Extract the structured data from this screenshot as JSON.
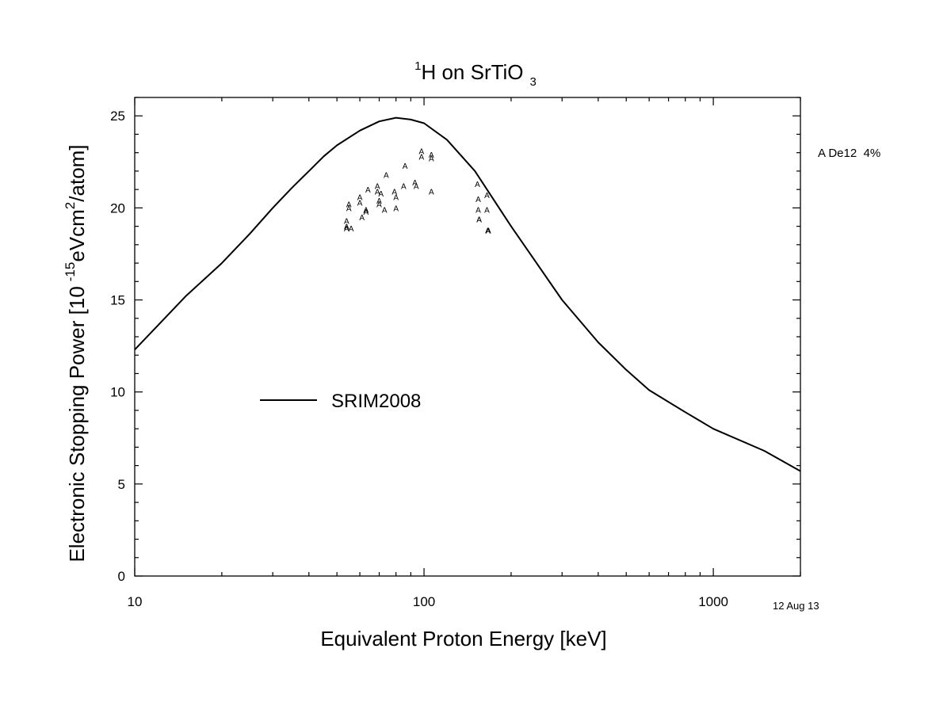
{
  "chart_data": {
    "type": "line",
    "title": {
      "sup": "1",
      "main": "H on SrTiO",
      "sub": "3"
    },
    "xlabel": "Equivalent Proton Energy [keV]",
    "ylabel": {
      "pre": "Electronic Stopping Power [10",
      "sup1": "-15",
      "mid": "eVcm",
      "sup2": "2",
      "post": "/atom]"
    },
    "x_scale": "log",
    "xlim": [
      10,
      2000
    ],
    "ylim": [
      0,
      26
    ],
    "x_tick_labels": [
      "10",
      "100",
      "1000"
    ],
    "x_major_ticks": [
      10,
      100,
      1000
    ],
    "y_ticks": [
      0,
      5,
      10,
      15,
      20,
      25
    ],
    "y_tick_labels": [
      "0",
      "5",
      "10",
      "15",
      "20",
      "25"
    ],
    "grid": false,
    "series": [
      {
        "name": "SRIM2008",
        "style": "line",
        "color": "#000000",
        "x": [
          10,
          12,
          15,
          20,
          25,
          30,
          35,
          40,
          45,
          50,
          60,
          70,
          80,
          90,
          100,
          120,
          150,
          200,
          250,
          300,
          400,
          500,
          600,
          800,
          1000,
          1500,
          2000
        ],
        "y": [
          12.3,
          13.6,
          15.2,
          17.0,
          18.6,
          20.0,
          21.1,
          22.0,
          22.8,
          23.4,
          24.2,
          24.7,
          24.9,
          24.8,
          24.6,
          23.7,
          22.0,
          19.0,
          16.8,
          15.0,
          12.7,
          11.2,
          10.1,
          8.9,
          8.0,
          6.8,
          5.7
        ]
      },
      {
        "name": "A De12  4%",
        "style": "marker",
        "marker": "A",
        "color": "#000000",
        "x": [
          54,
          54,
          54,
          55,
          55,
          56,
          60,
          60,
          61,
          63,
          63,
          64,
          69,
          69,
          70,
          70,
          71,
          73,
          74,
          79,
          80,
          80,
          85,
          86,
          93,
          94,
          98,
          98,
          106,
          106,
          106,
          153,
          154,
          154,
          155,
          155,
          165,
          165,
          166,
          167
        ],
        "y": [
          19.3,
          19.0,
          18.9,
          20.2,
          20.0,
          18.9,
          20.6,
          20.3,
          19.5,
          19.9,
          19.8,
          21.0,
          21.2,
          20.9,
          20.4,
          20.2,
          20.8,
          19.9,
          21.8,
          20.9,
          20.6,
          20.0,
          21.2,
          22.3,
          21.4,
          21.2,
          23.1,
          22.8,
          22.9,
          22.7,
          20.9,
          21.3,
          20.5,
          19.9,
          19.4,
          19.4,
          20.7,
          19.9,
          18.8,
          18.8
        ]
      }
    ],
    "legend": {
      "placement": "inside-left",
      "entries": [
        "SRIM2008"
      ]
    },
    "side_legend": {
      "placement": "right-outside-top",
      "text": "A De12  4%"
    },
    "annotation": "12 Aug 13"
  }
}
